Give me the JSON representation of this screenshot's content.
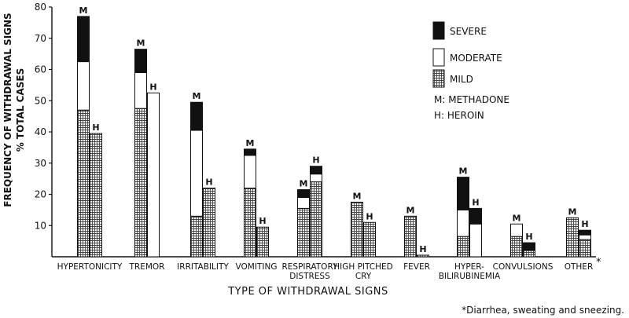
{
  "chart_data": {
    "type": "bar",
    "stacked": true,
    "grouped": true,
    "ylabel_line1": "FREQUENCY OF WITHDRAWAL SIGNS",
    "ylabel_line2": "% TOTAL CASES",
    "xlabel": "TYPE OF WITHDRAWAL SIGNS",
    "ylim": [
      0,
      80
    ],
    "yticks": [
      10,
      20,
      30,
      40,
      50,
      60,
      70,
      80
    ],
    "stack_order": [
      "mild",
      "moderate",
      "severe"
    ],
    "legend": {
      "position": "top-right",
      "series": [
        {
          "key": "severe",
          "label": "SEVERE",
          "fill": "solid-black"
        },
        {
          "key": "moderate",
          "label": "MODERATE",
          "fill": "white"
        },
        {
          "key": "mild",
          "label": "MILD",
          "fill": "grid-hatch"
        }
      ],
      "key_notes": [
        "M: METHADONE",
        "H: HEROIN"
      ]
    },
    "categories": [
      {
        "label": [
          "HYPERTONICITY"
        ],
        "bars": [
          {
            "letter": "M",
            "mild": 47,
            "moderate": 15.5,
            "severe": 14.5
          },
          {
            "letter": "H",
            "mild": 39.5,
            "moderate": 0,
            "severe": 0
          }
        ]
      },
      {
        "label": [
          "TREMOR"
        ],
        "bars": [
          {
            "letter": "M",
            "mild": 47.5,
            "moderate": 11.5,
            "severe": 7.5
          },
          {
            "letter": "H",
            "mild": 0,
            "moderate": 52.5,
            "severe": 0
          }
        ]
      },
      {
        "label": [
          "IRRITABILITY"
        ],
        "bars": [
          {
            "letter": "M",
            "mild": 13,
            "moderate": 27.5,
            "severe": 9
          },
          {
            "letter": "H",
            "mild": 22,
            "moderate": 0,
            "severe": 0
          }
        ]
      },
      {
        "label": [
          "VOMITING"
        ],
        "bars": [
          {
            "letter": "M",
            "mild": 22,
            "moderate": 10.5,
            "severe": 2
          },
          {
            "letter": "H",
            "mild": 9.5,
            "moderate": 0,
            "severe": 0
          }
        ]
      },
      {
        "label": [
          "RESPIRATORY",
          "DISTRESS"
        ],
        "bars": [
          {
            "letter": "M",
            "mild": 15.5,
            "moderate": 3.5,
            "severe": 2.5
          },
          {
            "letter": "H",
            "mild": 24,
            "moderate": 2.5,
            "severe": 2.5
          }
        ]
      },
      {
        "label": [
          "HIGH PITCHED",
          "CRY"
        ],
        "bars": [
          {
            "letter": "M",
            "mild": 17.5,
            "moderate": 0,
            "severe": 0
          },
          {
            "letter": "H",
            "mild": 11,
            "moderate": 0,
            "severe": 0
          }
        ]
      },
      {
        "label": [
          "FEVER"
        ],
        "bars": [
          {
            "letter": "M",
            "mild": 13,
            "moderate": 0,
            "severe": 0
          },
          {
            "letter": "H",
            "mild": 0.5,
            "moderate": 0,
            "severe": 0
          }
        ]
      },
      {
        "label": [
          "HYPER-",
          "BILIRUBINEMIA"
        ],
        "bars": [
          {
            "letter": "M",
            "mild": 6.5,
            "moderate": 8.5,
            "severe": 10.5
          },
          {
            "letter": "H",
            "mild": 0,
            "moderate": 10.5,
            "severe": 5
          }
        ]
      },
      {
        "label": [
          "CONVULSIONS"
        ],
        "bars": [
          {
            "letter": "M",
            "mild": 6.5,
            "moderate": 4,
            "severe": 0
          },
          {
            "letter": "H",
            "mild": 2,
            "moderate": 0,
            "severe": 2.5
          }
        ]
      },
      {
        "label": [
          "OTHER"
        ],
        "label_mark": "*",
        "bars": [
          {
            "letter": "M",
            "mild": 12.5,
            "moderate": 0,
            "severe": 0
          },
          {
            "letter": "H",
            "mild": 5.5,
            "moderate": 1.5,
            "severe": 1.5
          }
        ]
      }
    ],
    "footnote": "*Diarrhea, sweating and sneezing."
  }
}
